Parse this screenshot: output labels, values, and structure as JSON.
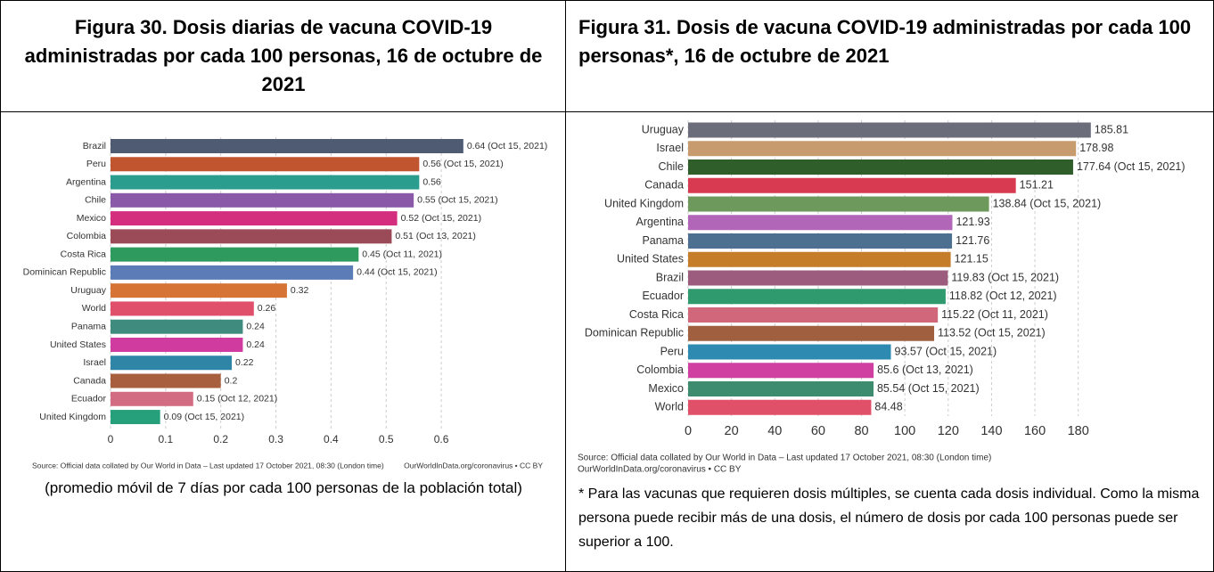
{
  "chart_data": [
    {
      "type": "bar",
      "orientation": "horizontal",
      "title": "Figura 30. Dosis diarias de vacuna COVID-19 administradas por cada 100 personas, 16 de octubre de 2021",
      "categories": [
        "Brazil",
        "Peru",
        "Argentina",
        "Chile",
        "Mexico",
        "Colombia",
        "Costa Rica",
        "Dominican Republic",
        "Uruguay",
        "World",
        "Panama",
        "United States",
        "Israel",
        "Canada",
        "Ecuador",
        "United Kingdom"
      ],
      "values": [
        0.64,
        0.56,
        0.56,
        0.55,
        0.52,
        0.51,
        0.45,
        0.44,
        0.32,
        0.26,
        0.24,
        0.24,
        0.22,
        0.2,
        0.15,
        0.09
      ],
      "value_labels": [
        "0.64 (Oct 15, 2021)",
        "0.56 (Oct 15, 2021)",
        "0.56",
        "0.55 (Oct 15, 2021)",
        "0.52 (Oct 15, 2021)",
        "0.51 (Oct 13, 2021)",
        "0.45 (Oct 11, 2021)",
        "0.44 (Oct 15, 2021)",
        "0.32",
        "0.26",
        "0.24",
        "0.24",
        "0.22",
        "0.2",
        "0.15 (Oct 12, 2021)",
        "0.09 (Oct 15, 2021)"
      ],
      "colors": [
        "#4e5b72",
        "#c0552f",
        "#2a9d8f",
        "#8a5aa8",
        "#d42f7e",
        "#9a4b57",
        "#2e9a5e",
        "#5b7cb6",
        "#d57434",
        "#e0506a",
        "#3f8c7e",
        "#d03ba0",
        "#2f85a6",
        "#a85f3d",
        "#d26c82",
        "#25a07a"
      ],
      "xlim": [
        0,
        0.65
      ],
      "xticks": [
        0,
        0.1,
        0.2,
        0.3,
        0.4,
        0.5,
        0.6
      ],
      "grid": true,
      "source": [
        "Source: Official data collated by Our World in Data – Last updated 17 October 2021, 08:30 (London time)",
        "OurWorldInData.org/coronavirus • CC BY"
      ],
      "note": "(promedio móvil de 7 días por cada 100 personas de la población total)"
    },
    {
      "type": "bar",
      "orientation": "horizontal",
      "title": "Figura 31. Dosis de vacuna COVID-19 administradas por cada 100 personas*, 16 de octubre de 2021",
      "categories": [
        "Uruguay",
        "Israel",
        "Chile",
        "Canada",
        "United Kingdom",
        "Argentina",
        "Panama",
        "United States",
        "Brazil",
        "Ecuador",
        "Costa Rica",
        "Dominican Republic",
        "Peru",
        "Colombia",
        "Mexico",
        "World"
      ],
      "values": [
        185.81,
        178.98,
        177.64,
        151.21,
        138.84,
        121.93,
        121.76,
        121.15,
        119.83,
        118.82,
        115.22,
        113.52,
        93.57,
        85.6,
        85.54,
        84.48
      ],
      "value_labels": [
        "185.81",
        "178.98",
        "177.64 (Oct 15, 2021)",
        "151.21",
        "138.84 (Oct 15, 2021)",
        "121.93",
        "121.76",
        "121.15",
        "119.83 (Oct 15, 2021)",
        "118.82 (Oct 12, 2021)",
        "115.22 (Oct 11, 2021)",
        "113.52 (Oct 15, 2021)",
        "93.57 (Oct 15, 2021)",
        "85.6 (Oct 13, 2021)",
        "85.54 (Oct 15, 2021)",
        "84.48"
      ],
      "colors": [
        "#6b6e7a",
        "#c89b6e",
        "#2f5e2a",
        "#d83a52",
        "#6d9a5c",
        "#b166b8",
        "#4d7090",
        "#c57d2a",
        "#9b5c7e",
        "#2e9a6e",
        "#d0677a",
        "#a06040",
        "#2e8ab0",
        "#d040a0",
        "#3e8c70",
        "#e05068"
      ],
      "xlim": [
        0,
        190
      ],
      "xticks": [
        0,
        20,
        40,
        60,
        80,
        100,
        120,
        140,
        160,
        180
      ],
      "grid": true,
      "source": [
        "Source: Official data collated by Our World in Data – Last updated 17 October 2021, 08:30 (London time)",
        "OurWorldInData.org/coronavirus • CC BY"
      ],
      "note": "* Para las vacunas que requieren dosis múltiples, se cuenta cada dosis individual. Como la misma persona puede recibir más de una dosis, el número de dosis por cada 100 personas puede ser superior a 100."
    }
  ]
}
